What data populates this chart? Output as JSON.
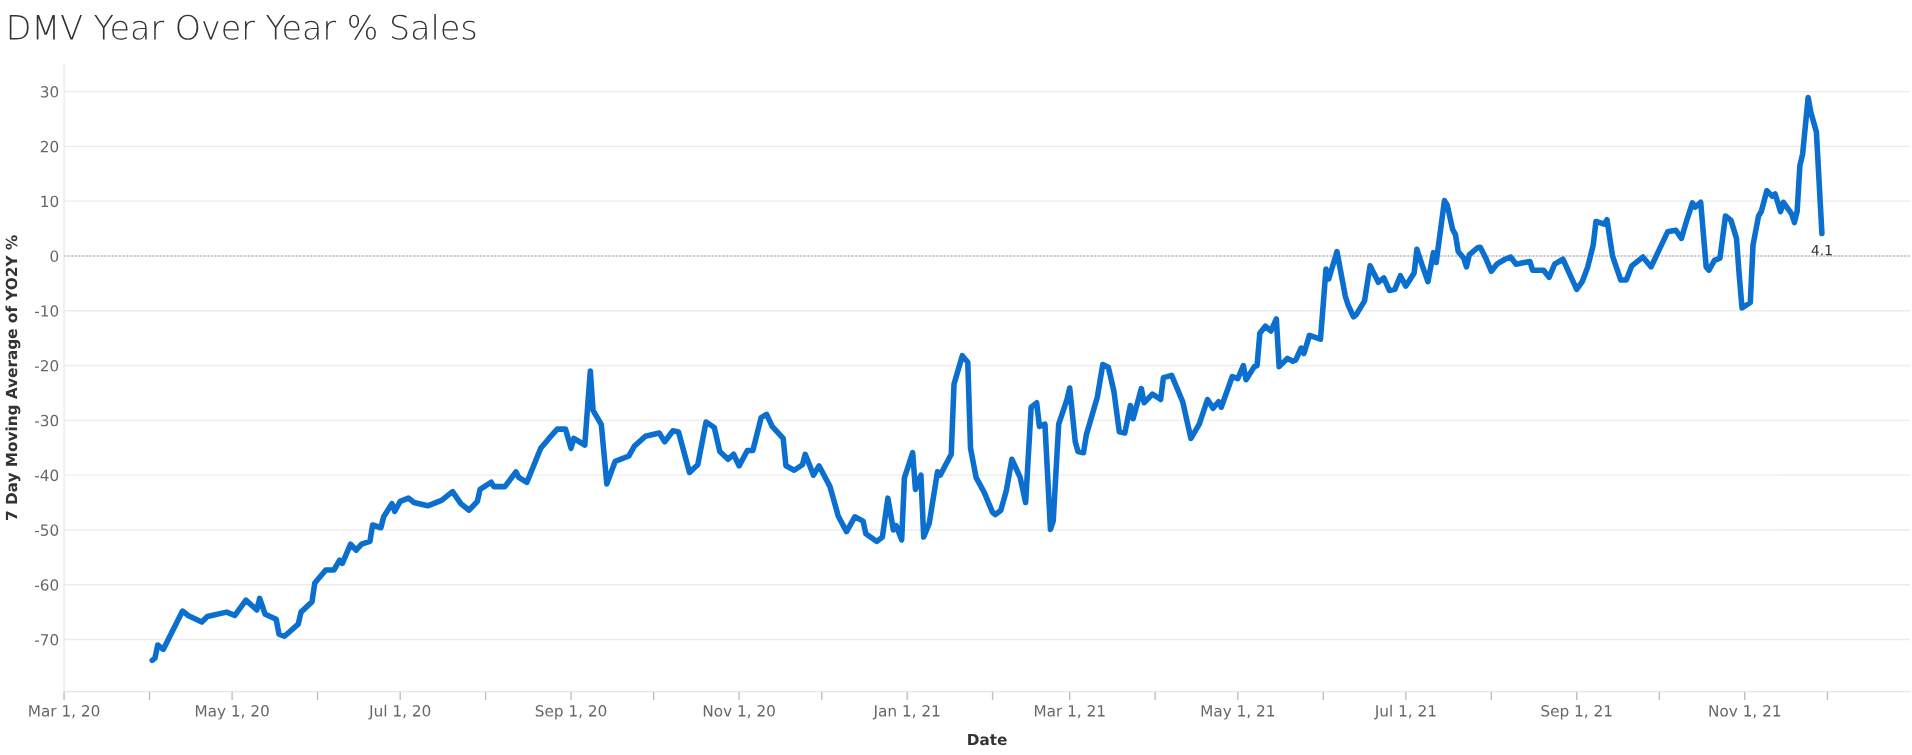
{
  "chart_data": {
    "type": "line",
    "title": "DMV Year Over Year % Sales",
    "xlabel": "Date",
    "ylabel": "7 Day Moving Average of YO2Y %",
    "x": [
      "2020-04-02",
      "2020-04-03",
      "2020-04-04",
      "2020-04-06",
      "2020-04-13",
      "2020-04-15",
      "2020-04-20",
      "2020-04-22",
      "2020-04-29",
      "2020-05-02",
      "2020-05-06",
      "2020-05-10",
      "2020-05-11",
      "2020-05-13",
      "2020-05-17",
      "2020-05-18",
      "2020-05-20",
      "2020-05-25",
      "2020-05-26",
      "2020-05-30",
      "2020-05-31",
      "2020-06-04",
      "2020-06-07",
      "2020-06-09",
      "2020-06-10",
      "2020-06-13",
      "2020-06-15",
      "2020-06-17",
      "2020-06-20",
      "2020-06-21",
      "2020-06-24",
      "2020-06-25",
      "2020-06-28",
      "2020-06-29",
      "2020-07-01",
      "2020-07-04",
      "2020-07-06",
      "2020-07-11",
      "2020-07-16",
      "2020-07-20",
      "2020-07-23",
      "2020-07-26",
      "2020-07-29",
      "2020-07-30",
      "2020-08-03",
      "2020-08-04",
      "2020-08-08",
      "2020-08-12",
      "2020-08-13",
      "2020-08-16",
      "2020-08-21",
      "2020-08-24",
      "2020-08-27",
      "2020-08-30",
      "2020-09-01",
      "2020-09-02",
      "2020-09-06",
      "2020-09-08",
      "2020-09-09",
      "2020-09-12",
      "2020-09-14",
      "2020-09-17",
      "2020-09-22",
      "2020-09-24",
      "2020-09-28",
      "2020-10-03",
      "2020-10-05",
      "2020-10-08",
      "2020-10-10",
      "2020-10-14",
      "2020-10-17",
      "2020-10-20",
      "2020-10-23",
      "2020-10-25",
      "2020-10-28",
      "2020-10-30",
      "2020-11-01",
      "2020-11-04",
      "2020-11-06",
      "2020-11-09",
      "2020-11-11",
      "2020-11-13",
      "2020-11-17",
      "2020-11-18",
      "2020-11-21",
      "2020-11-24",
      "2020-11-25",
      "2020-11-28",
      "2020-11-30",
      "2020-12-04",
      "2020-12-07",
      "2020-12-10",
      "2020-12-13",
      "2020-12-16",
      "2020-12-17",
      "2020-12-21",
      "2020-12-23",
      "2020-12-25",
      "2020-12-27",
      "2020-12-28",
      "2020-12-30",
      "2020-12-31",
      "2021-01-03",
      "2021-01-04",
      "2021-01-06",
      "2021-01-07",
      "2021-01-09",
      "2021-01-12",
      "2021-01-13",
      "2021-01-17",
      "2021-01-18",
      "2021-01-21",
      "2021-01-23",
      "2021-01-24",
      "2021-01-26",
      "2021-01-29",
      "2021-02-01",
      "2021-02-02",
      "2021-02-04",
      "2021-02-06",
      "2021-02-08",
      "2021-02-11",
      "2021-02-13",
      "2021-02-15",
      "2021-02-17",
      "2021-02-18",
      "2021-02-20",
      "2021-02-22",
      "2021-02-23",
      "2021-02-25",
      "2021-02-28",
      "2021-03-01",
      "2021-03-03",
      "2021-03-04",
      "2021-03-06",
      "2021-03-07",
      "2021-03-11",
      "2021-03-13",
      "2021-03-15",
      "2021-03-17",
      "2021-03-19",
      "2021-03-21",
      "2021-03-23",
      "2021-03-24",
      "2021-03-27",
      "2021-03-28",
      "2021-03-31",
      "2021-04-03",
      "2021-04-04",
      "2021-04-07",
      "2021-04-11",
      "2021-04-13",
      "2021-04-14",
      "2021-04-17",
      "2021-04-20",
      "2021-04-22",
      "2021-04-24",
      "2021-04-25",
      "2021-04-29",
      "2021-05-01",
      "2021-05-03",
      "2021-05-04",
      "2021-05-07",
      "2021-05-08",
      "2021-05-09",
      "2021-05-11",
      "2021-05-13",
      "2021-05-15",
      "2021-05-16",
      "2021-05-19",
      "2021-05-21",
      "2021-05-22",
      "2021-05-24",
      "2021-05-25",
      "2021-05-27",
      "2021-05-31",
      "2021-06-01",
      "2021-06-02",
      "2021-06-03",
      "2021-06-06",
      "2021-06-09",
      "2021-06-10",
      "2021-06-12",
      "2021-06-13",
      "2021-06-16",
      "2021-06-18",
      "2021-06-21",
      "2021-06-23",
      "2021-06-25",
      "2021-06-27",
      "2021-06-29",
      "2021-07-01",
      "2021-07-04",
      "2021-07-05",
      "2021-07-07",
      "2021-07-09",
      "2021-07-11",
      "2021-07-12",
      "2021-07-15",
      "2021-07-16",
      "2021-07-18",
      "2021-07-19",
      "2021-07-20",
      "2021-07-22",
      "2021-07-23",
      "2021-07-24",
      "2021-07-27",
      "2021-07-28",
      "2021-07-30",
      "2021-08-01",
      "2021-08-03",
      "2021-08-06",
      "2021-08-08",
      "2021-08-10",
      "2021-08-15",
      "2021-08-16",
      "2021-08-20",
      "2021-08-22",
      "2021-08-24",
      "2021-08-27",
      "2021-08-30",
      "2021-09-01",
      "2021-09-03",
      "2021-09-05",
      "2021-09-07",
      "2021-09-08",
      "2021-09-11",
      "2021-09-12",
      "2021-09-14",
      "2021-09-15",
      "2021-09-17",
      "2021-09-19",
      "2021-09-21",
      "2021-09-25",
      "2021-09-28",
      "2021-10-01",
      "2021-10-04",
      "2021-10-07",
      "2021-10-09",
      "2021-10-11",
      "2021-10-13",
      "2021-10-14",
      "2021-10-16",
      "2021-10-18",
      "2021-10-19",
      "2021-10-21",
      "2021-10-23",
      "2021-10-25",
      "2021-10-27",
      "2021-10-29",
      "2021-10-30",
      "2021-10-31",
      "2021-11-03",
      "2021-11-04",
      "2021-11-06",
      "2021-11-07",
      "2021-11-09",
      "2021-11-11",
      "2021-11-12",
      "2021-11-14",
      "2021-11-15",
      "2021-11-18",
      "2021-11-19",
      "2021-11-20",
      "2021-11-21",
      "2021-11-22",
      "2021-11-24",
      "2021-11-25",
      "2021-11-27",
      "2021-11-29"
    ],
    "series": [
      {
        "color": "#0b6fd0",
        "values": [
          -73.8,
          -73.4,
          -71.0,
          -71.8,
          -64.8,
          -65.6,
          -66.8,
          -65.8,
          -65.0,
          -65.6,
          -62.8,
          -64.6,
          -62.5,
          -65.4,
          -66.3,
          -69.0,
          -69.4,
          -67.2,
          -65.0,
          -63.1,
          -59.7,
          -57.3,
          -57.3,
          -55.5,
          -56.1,
          -52.6,
          -53.7,
          -52.6,
          -52.1,
          -49.1,
          -49.6,
          -47.6,
          -45.2,
          -46.6,
          -44.8,
          -44.2,
          -45.0,
          -45.6,
          -44.6,
          -43.0,
          -45.2,
          -46.4,
          -44.8,
          -42.6,
          -41.3,
          -42.1,
          -42.1,
          -39.4,
          -40.4,
          -41.3,
          -35.1,
          -33.3,
          -31.6,
          -31.6,
          -35.1,
          -33.3,
          -34.5,
          -21.0,
          -28.2,
          -30.8,
          -41.6,
          -37.5,
          -36.5,
          -34.7,
          -32.9,
          -32.3,
          -33.9,
          -31.9,
          -32.1,
          -39.5,
          -38.1,
          -30.3,
          -31.3,
          -35.7,
          -37.1,
          -36.2,
          -38.3,
          -35.5,
          -35.5,
          -29.5,
          -28.9,
          -31.1,
          -33.3,
          -38.3,
          -39.1,
          -38.1,
          -36.2,
          -40.0,
          -38.3,
          -42.1,
          -47.5,
          -50.3,
          -47.6,
          -48.4,
          -50.7,
          -52.1,
          -51.3,
          -44.2,
          -50.0,
          -49.2,
          -51.8,
          -40.5,
          -35.9,
          -42.6,
          -40.0,
          -51.3,
          -48.8,
          -39.4,
          -40.0,
          -36.2,
          -23.4,
          -18.2,
          -19.4,
          -35.1,
          -40.4,
          -43.2,
          -46.8,
          -47.2,
          -46.4,
          -42.8,
          -37.1,
          -40.4,
          -45.0,
          -27.6,
          -26.8,
          -31.1,
          -30.7,
          -49.9,
          -48.4,
          -30.7,
          -26.2,
          -24.1,
          -33.9,
          -35.7,
          -35.9,
          -32.7,
          -25.8,
          -19.8,
          -20.3,
          -24.6,
          -32.1,
          -32.3,
          -27.3,
          -29.7,
          -24.2,
          -26.8,
          -25.2,
          -26.2,
          -22.2,
          -21.8,
          -26.6,
          -31.1,
          -33.3,
          -30.7,
          -26.2,
          -27.8,
          -26.6,
          -27.6,
          -22.0,
          -22.4,
          -20.0,
          -22.6,
          -20.2,
          -20.0,
          -14.1,
          -12.8,
          -13.7,
          -11.5,
          -20.2,
          -18.7,
          -19.2,
          -19.0,
          -16.8,
          -17.8,
          -14.5,
          -15.2,
          -8.9,
          -2.4,
          -4.2,
          0.8,
          -7.3,
          -8.9,
          -11.1,
          -10.7,
          -8.2,
          -1.8,
          -4.8,
          -4.0,
          -6.3,
          -6.1,
          -3.6,
          -5.5,
          -3.1,
          1.2,
          -1.8,
          -4.7,
          0.6,
          -1.2,
          10.1,
          9.3,
          4.8,
          3.9,
          0.8,
          -0.4,
          -2.0,
          0.2,
          1.5,
          1.6,
          -0.4,
          -2.8,
          -1.5,
          -0.6,
          -0.2,
          -1.5,
          -1.0,
          -2.6,
          -2.6,
          -3.9,
          -1.5,
          -0.6,
          -3.9,
          -6.1,
          -4.7,
          -2.0,
          2.0,
          6.3,
          5.8,
          6.6,
          0.0,
          -1.5,
          -4.4,
          -4.4,
          -1.8,
          -0.2,
          -2.0,
          1.2,
          4.4,
          4.7,
          3.2,
          6.6,
          9.7,
          8.9,
          9.8,
          -2.0,
          -2.6,
          -0.8,
          -0.4,
          7.3,
          6.5,
          3.2,
          -3.6,
          -9.5,
          -8.5,
          2.0,
          7.3,
          8.1,
          11.9,
          10.9,
          11.3,
          8.1,
          9.8,
          7.7,
          6.1,
          8.1,
          16.5,
          18.6,
          28.9,
          26.2,
          22.6,
          4.1
        ]
      }
    ],
    "xlim": [
      "2020-03-01",
      "2021-12-31"
    ],
    "xticks": [
      {
        "value": "2020-03-01",
        "label": "Mar 1, 20"
      },
      {
        "value": "2020-04-01",
        "label": null
      },
      {
        "value": "2020-05-01",
        "label": "May 1, 20"
      },
      {
        "value": "2020-06-01",
        "label": null
      },
      {
        "value": "2020-07-01",
        "label": "Jul 1, 20"
      },
      {
        "value": "2020-08-01",
        "label": null
      },
      {
        "value": "2020-09-01",
        "label": "Sep 1, 20"
      },
      {
        "value": "2020-10-01",
        "label": null
      },
      {
        "value": "2020-11-01",
        "label": "Nov 1, 20"
      },
      {
        "value": "2020-12-01",
        "label": null
      },
      {
        "value": "2021-01-01",
        "label": "Jan 1, 21"
      },
      {
        "value": "2021-02-01",
        "label": null
      },
      {
        "value": "2021-03-01",
        "label": "Mar 1, 21"
      },
      {
        "value": "2021-04-01",
        "label": null
      },
      {
        "value": "2021-05-01",
        "label": "May 1, 21"
      },
      {
        "value": "2021-06-01",
        "label": null
      },
      {
        "value": "2021-07-01",
        "label": "Jul 1, 21"
      },
      {
        "value": "2021-08-01",
        "label": null
      },
      {
        "value": "2021-09-01",
        "label": "Sep 1, 21"
      },
      {
        "value": "2021-10-01",
        "label": null
      },
      {
        "value": "2021-11-01",
        "label": "Nov 1, 21"
      },
      {
        "value": "2021-12-01",
        "label": null
      }
    ],
    "ylim": [
      -79.5,
      35
    ],
    "yticks": [
      -70,
      -60,
      -50,
      -40,
      -30,
      -20,
      -10,
      0,
      10,
      20,
      30
    ],
    "ref_lines": [
      {
        "axis": "y",
        "value": 0,
        "label": null,
        "color": "#b0b0b0",
        "line_style": "dotted"
      }
    ],
    "annotations": [
      {
        "text": "4.1",
        "x": "2021-11-29",
        "y": 4.1
      }
    ],
    "grid": "y",
    "legend": false,
    "marker": "none",
    "line_style": "solid"
  }
}
